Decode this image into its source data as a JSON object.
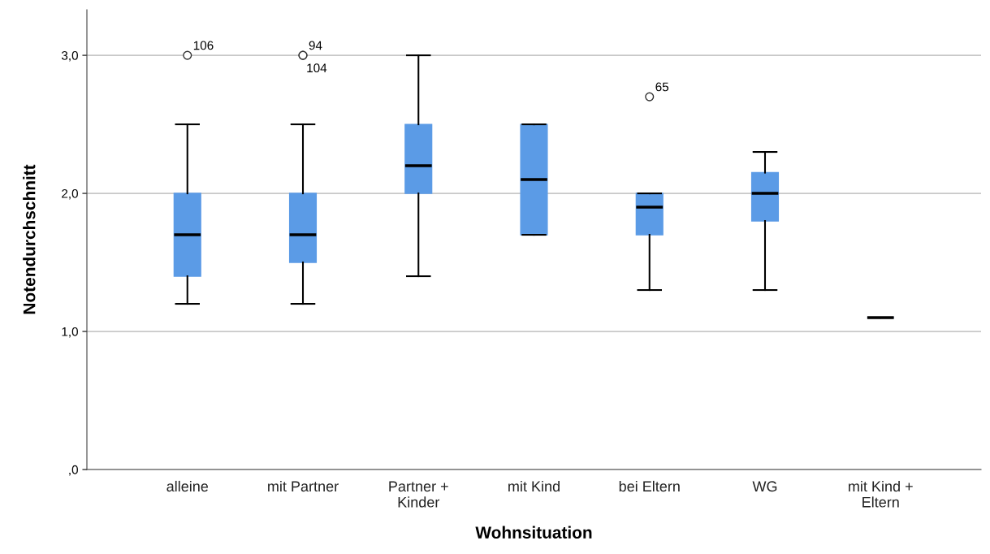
{
  "chart_data": {
    "type": "box",
    "xlabel": "Wohnsituation",
    "ylabel": "Notendurchschnitt",
    "categories": [
      "alleine",
      "mit Partner",
      "Partner +\nKinder",
      "mit Kind",
      "bei Eltern",
      "WG",
      "mit Kind +\nEltern"
    ],
    "boxes": [
      {
        "low": 1.2,
        "q1": 1.4,
        "median": 1.7,
        "q3": 2.0,
        "high": 2.5,
        "outliers": [
          3.0
        ]
      },
      {
        "low": 1.2,
        "q1": 1.5,
        "median": 1.7,
        "q3": 2.0,
        "high": 2.5,
        "outliers": [
          3.0,
          3.0
        ]
      },
      {
        "low": 1.4,
        "q1": 2.0,
        "median": 2.2,
        "q3": 2.5,
        "high": 3.0
      },
      {
        "low": 1.7,
        "q1": 1.7,
        "median": 2.1,
        "q3": 2.5,
        "high": 2.5
      },
      {
        "low": 1.3,
        "q1": 1.7,
        "median": 1.9,
        "q3": 2.0,
        "high": 2.0,
        "outliers": [
          2.7
        ]
      },
      {
        "low": 1.3,
        "q1": 1.8,
        "median": 2.0,
        "q3": 2.15,
        "high": 2.3
      },
      {
        "low": 1.1,
        "q1": 1.1,
        "median": 1.1,
        "q3": 1.1,
        "high": 1.1
      }
    ],
    "color": "#5b9be6",
    "ylim": [
      0,
      3.33
    ],
    "yticks": [
      {
        "value": 0,
        "label": ",0"
      },
      {
        "value": 1,
        "label": "1,0"
      },
      {
        "value": 2,
        "label": "2,0"
      },
      {
        "value": 3,
        "label": "3,0"
      }
    ],
    "grid": "y",
    "annotations": [
      "106",
      "94",
      "104",
      "65"
    ]
  }
}
